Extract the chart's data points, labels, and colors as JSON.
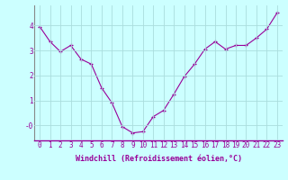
{
  "x": [
    0,
    1,
    2,
    3,
    4,
    5,
    6,
    7,
    8,
    9,
    10,
    11,
    12,
    13,
    14,
    15,
    16,
    17,
    18,
    19,
    20,
    21,
    22,
    23
  ],
  "y": [
    3.95,
    3.35,
    2.95,
    3.2,
    2.65,
    2.45,
    1.5,
    0.9,
    -0.05,
    -0.3,
    -0.25,
    0.35,
    0.6,
    1.25,
    1.95,
    2.45,
    3.05,
    3.35,
    3.05,
    3.2,
    3.2,
    3.5,
    3.85,
    4.5
  ],
  "line_color": "#990099",
  "marker": "+",
  "bg_color": "#ccffff",
  "grid_color": "#aadddd",
  "xlabel": "Windchill (Refroidissement éolien,°C)",
  "xlim": [
    -0.5,
    23.5
  ],
  "ylim": [
    -0.6,
    4.8
  ],
  "yticks": [
    0,
    1,
    2,
    3,
    4
  ],
  "ytick_labels": [
    "-0",
    "1",
    "2",
    "3",
    "4"
  ],
  "xticks": [
    0,
    1,
    2,
    3,
    4,
    5,
    6,
    7,
    8,
    9,
    10,
    11,
    12,
    13,
    14,
    15,
    16,
    17,
    18,
    19,
    20,
    21,
    22,
    23
  ],
  "label_fontsize": 6.0,
  "tick_fontsize": 5.5
}
